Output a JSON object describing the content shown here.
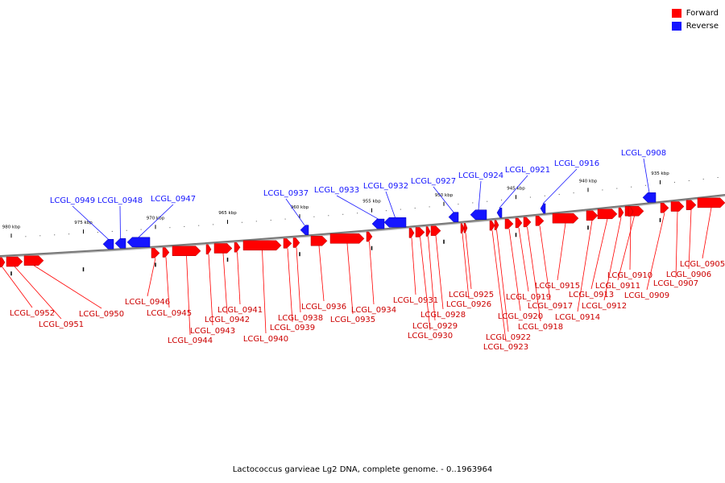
{
  "legend": {
    "forward_label": "Forward",
    "reverse_label": "Reverse",
    "forward_color": "#ff0000",
    "reverse_color": "#1515ff"
  },
  "caption": "Lactococcus garvieae Lg2 DNA, complete genome. - 0..1963964",
  "scale": {
    "ticks": [
      {
        "label": "980 kbp",
        "kbp": 980
      },
      {
        "label": "975 kbp",
        "kbp": 975
      },
      {
        "label": "970 kbp",
        "kbp": 970
      },
      {
        "label": "965 kbp",
        "kbp": 965
      },
      {
        "label": "960 kbp",
        "kbp": 960
      },
      {
        "label": "955 kbp",
        "kbp": 955
      },
      {
        "label": "950 kbp",
        "kbp": 950
      },
      {
        "label": "945 kbp",
        "kbp": 945
      },
      {
        "label": "940 kbp",
        "kbp": 940
      },
      {
        "label": "935 kbp",
        "kbp": 935
      }
    ]
  },
  "reverse_genes": [
    {
      "label": "LCGL_0949"
    },
    {
      "label": "LCGL_0948"
    },
    {
      "label": "LCGL_0947"
    },
    {
      "label": "LCGL_0937"
    },
    {
      "label": "LCGL_0933"
    },
    {
      "label": "LCGL_0932"
    },
    {
      "label": "LCGL_0927"
    },
    {
      "label": "LCGL_0924"
    },
    {
      "label": "LCGL_0921"
    },
    {
      "label": "LCGL_0916"
    },
    {
      "label": "LCGL_0908"
    }
  ],
  "forward_genes": [
    {
      "label": "LCGL_0952"
    },
    {
      "label": "LCGL_0951"
    },
    {
      "label": "LCGL_0950"
    },
    {
      "label": "LCGL_0946"
    },
    {
      "label": "LCGL_0945"
    },
    {
      "label": "LCGL_0944"
    },
    {
      "label": "LCGL_0943"
    },
    {
      "label": "LCGL_0942"
    },
    {
      "label": "LCGL_0941"
    },
    {
      "label": "LCGL_0940"
    },
    {
      "label": "LCGL_0939"
    },
    {
      "label": "LCGL_0938"
    },
    {
      "label": "LCGL_0936"
    },
    {
      "label": "LCGL_0935"
    },
    {
      "label": "LCGL_0934"
    },
    {
      "label": "LCGL_0931"
    },
    {
      "label": "LCGL_0930"
    },
    {
      "label": "LCGL_0929"
    },
    {
      "label": "LCGL_0928"
    },
    {
      "label": "LCGL_0926"
    },
    {
      "label": "LCGL_0925"
    },
    {
      "label": "LCGL_0923"
    },
    {
      "label": "LCGL_0922"
    },
    {
      "label": "LCGL_0920"
    },
    {
      "label": "LCGL_0919"
    },
    {
      "label": "LCGL_0918"
    },
    {
      "label": "LCGL_0917"
    },
    {
      "label": "LCGL_0915"
    },
    {
      "label": "LCGL_0914"
    },
    {
      "label": "LCGL_0913"
    },
    {
      "label": "LCGL_0912"
    },
    {
      "label": "LCGL_0911"
    },
    {
      "label": "LCGL_0910"
    },
    {
      "label": "LCGL_0909"
    },
    {
      "label": "LCGL_0907"
    },
    {
      "label": "LCGL_0906"
    },
    {
      "label": "LCGL_0905"
    }
  ]
}
